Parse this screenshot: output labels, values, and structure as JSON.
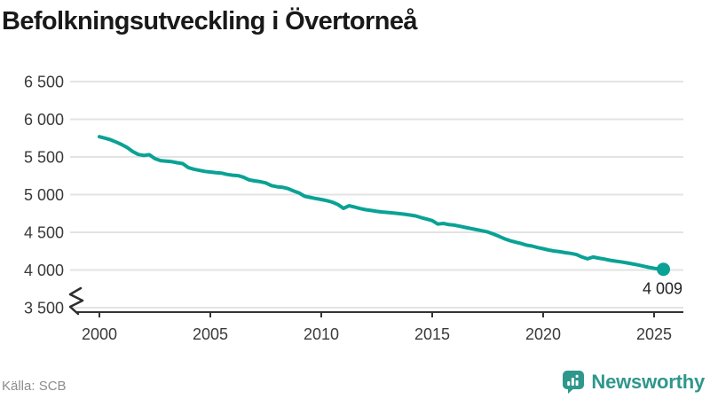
{
  "title": "Befolkningsutveckling i Övertorneå",
  "source": "Källa: SCB",
  "branding": {
    "name": "Newsworthy",
    "icon": "bar-chart-speech-bubble",
    "color": "#2f978b"
  },
  "colors": {
    "line": "#0aa295",
    "grid": "#e3e3e3",
    "axis": "#333333",
    "tick_label": "#3a3a3a",
    "title_text": "#191919",
    "muted_text": "#8c8c8c",
    "end_label_text": "#222222"
  },
  "chart_data": {
    "type": "line",
    "title": "Befolkningsutveckling i Övertorneå",
    "xlabel": "",
    "ylabel": "",
    "grid": "horizontal",
    "legend": "none",
    "axis_break_at_bottom": true,
    "x_tick_labels": [
      "2000",
      "2005",
      "2010",
      "2015",
      "2020",
      "2025"
    ],
    "x_tick_values": [
      2000,
      2005,
      2010,
      2015,
      2020,
      2025
    ],
    "y_tick_labels": [
      "6 500",
      "6 000",
      "5 500",
      "5 000",
      "4 500",
      "4 000",
      "3 500"
    ],
    "y_tick_values": [
      6500,
      6000,
      5500,
      5000,
      4500,
      4000,
      3500
    ],
    "ylim": [
      3500,
      6500
    ],
    "xlim": [
      1998.6,
      2026.8
    ],
    "end_label": "4 009",
    "end_value": 4009,
    "series": [
      {
        "name": "Befolkning",
        "points": [
          [
            2000.0,
            5768
          ],
          [
            2000.25,
            5750
          ],
          [
            2000.5,
            5728
          ],
          [
            2000.75,
            5698
          ],
          [
            2001.0,
            5665
          ],
          [
            2001.25,
            5625
          ],
          [
            2001.5,
            5572
          ],
          [
            2001.75,
            5533
          ],
          [
            2002.0,
            5520
          ],
          [
            2002.25,
            5530
          ],
          [
            2002.5,
            5478
          ],
          [
            2002.75,
            5452
          ],
          [
            2003.0,
            5445
          ],
          [
            2003.25,
            5438
          ],
          [
            2003.5,
            5424
          ],
          [
            2003.75,
            5412
          ],
          [
            2004.0,
            5360
          ],
          [
            2004.25,
            5338
          ],
          [
            2004.5,
            5322
          ],
          [
            2004.75,
            5308
          ],
          [
            2005.0,
            5300
          ],
          [
            2005.25,
            5292
          ],
          [
            2005.5,
            5286
          ],
          [
            2005.75,
            5268
          ],
          [
            2006.0,
            5258
          ],
          [
            2006.25,
            5252
          ],
          [
            2006.5,
            5230
          ],
          [
            2006.75,
            5195
          ],
          [
            2007.0,
            5182
          ],
          [
            2007.25,
            5172
          ],
          [
            2007.5,
            5155
          ],
          [
            2007.75,
            5120
          ],
          [
            2008.0,
            5105
          ],
          [
            2008.25,
            5098
          ],
          [
            2008.5,
            5080
          ],
          [
            2008.75,
            5048
          ],
          [
            2009.0,
            5022
          ],
          [
            2009.25,
            4978
          ],
          [
            2009.5,
            4963
          ],
          [
            2009.75,
            4948
          ],
          [
            2010.0,
            4935
          ],
          [
            2010.25,
            4920
          ],
          [
            2010.5,
            4900
          ],
          [
            2010.75,
            4868
          ],
          [
            2011.0,
            4818
          ],
          [
            2011.25,
            4852
          ],
          [
            2011.5,
            4835
          ],
          [
            2011.75,
            4815
          ],
          [
            2012.0,
            4800
          ],
          [
            2012.25,
            4790
          ],
          [
            2012.5,
            4778
          ],
          [
            2012.75,
            4770
          ],
          [
            2013.0,
            4764
          ],
          [
            2013.25,
            4755
          ],
          [
            2013.5,
            4748
          ],
          [
            2013.75,
            4740
          ],
          [
            2014.0,
            4730
          ],
          [
            2014.25,
            4718
          ],
          [
            2014.5,
            4695
          ],
          [
            2014.75,
            4675
          ],
          [
            2015.0,
            4655
          ],
          [
            2015.25,
            4610
          ],
          [
            2015.5,
            4618
          ],
          [
            2015.75,
            4602
          ],
          [
            2016.0,
            4595
          ],
          [
            2016.25,
            4580
          ],
          [
            2016.5,
            4565
          ],
          [
            2016.75,
            4550
          ],
          [
            2017.0,
            4535
          ],
          [
            2017.25,
            4520
          ],
          [
            2017.5,
            4505
          ],
          [
            2017.75,
            4478
          ],
          [
            2018.0,
            4448
          ],
          [
            2018.25,
            4415
          ],
          [
            2018.5,
            4390
          ],
          [
            2018.75,
            4370
          ],
          [
            2019.0,
            4352
          ],
          [
            2019.25,
            4330
          ],
          [
            2019.5,
            4318
          ],
          [
            2019.75,
            4298
          ],
          [
            2020.0,
            4282
          ],
          [
            2020.25,
            4265
          ],
          [
            2020.5,
            4252
          ],
          [
            2020.75,
            4242
          ],
          [
            2021.0,
            4230
          ],
          [
            2021.25,
            4220
          ],
          [
            2021.5,
            4205
          ],
          [
            2021.75,
            4172
          ],
          [
            2022.0,
            4148
          ],
          [
            2022.25,
            4172
          ],
          [
            2022.5,
            4158
          ],
          [
            2022.75,
            4145
          ],
          [
            2023.0,
            4130
          ],
          [
            2023.25,
            4118
          ],
          [
            2023.5,
            4108
          ],
          [
            2023.75,
            4095
          ],
          [
            2024.0,
            4082
          ],
          [
            2024.25,
            4068
          ],
          [
            2024.5,
            4052
          ],
          [
            2024.75,
            4035
          ],
          [
            2025.0,
            4022
          ],
          [
            2025.25,
            4012
          ],
          [
            2025.42,
            4009
          ]
        ]
      }
    ]
  }
}
